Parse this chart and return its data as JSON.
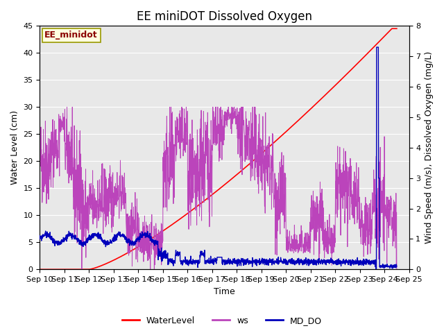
{
  "title": "EE miniDOT Dissolved Oxygen",
  "ylabel_left": "Water Level (cm)",
  "ylabel_right": "Wind Speed (m/s), Dissolved Oxygen (mg/L)",
  "xlabel": "Time",
  "ylim_left": [
    0,
    45
  ],
  "ylim_right": [
    0,
    8.0
  ],
  "water_level_color": "#FF0000",
  "ws_color": "#BB44BB",
  "md_do_color": "#0000BB",
  "annotation_text": "EE_minidot",
  "annotation_facecolor": "lightyellow",
  "annotation_edgecolor": "#999900",
  "background_color": "#E8E8E8",
  "title_fontsize": 12,
  "axis_fontsize": 9,
  "tick_fontsize": 8,
  "legend_fontsize": 9
}
